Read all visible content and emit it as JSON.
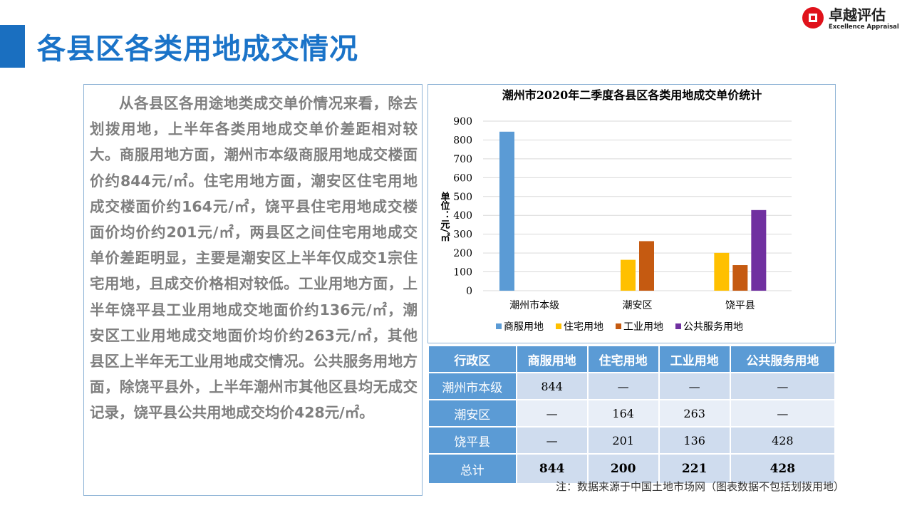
{
  "header": {
    "title": "各县区各类用地成交情况"
  },
  "logo": {
    "cn": "卓越评估",
    "en": "Excellence Appraisal",
    "color": "#e0121b"
  },
  "body_text": "从各县区各用途地类成交单价情况来看，除去划拨用地，上半年各类用地成交单价差距相对较大。商服用地方面，潮州市本级商服用地成交楼面价约844元/㎡。住宅用地方面，潮安区住宅用地成交楼面价约164元/㎡，饶平县住宅用地成交楼面价均价约201元/㎡，两县区之间住宅用地成交单价差距明显，主要是潮安区上半年仅成交1宗住宅用地，且成交价格相对较低。工业用地方面，上半年饶平县工业用地成交地面价约136元/㎡，潮安区工业用地成交地面价均价约263元/㎡，其他县区上半年无工业用地成交情况。公共服务用地方面，除饶平县外，上半年潮州市其他区县均无成交记录，饶平县公共用地成交均价428元/㎡。",
  "chart_data": {
    "type": "bar",
    "title": "潮州市2020年二季度各县区各类用地成交单价统计",
    "ylabel": "单位：元/㎡",
    "ylim": [
      0,
      900
    ],
    "yticks": [
      0,
      100,
      200,
      300,
      400,
      500,
      600,
      700,
      800,
      900
    ],
    "grid": true,
    "legend": "bottom",
    "categories": [
      "潮州市本级",
      "潮安区",
      "饶平县"
    ],
    "series": [
      {
        "name": "商服用地",
        "color": "#5b9bd5",
        "values": [
          844,
          null,
          null
        ]
      },
      {
        "name": "住宅用地",
        "color": "#ffc000",
        "values": [
          null,
          164,
          201
        ]
      },
      {
        "name": "工业用地",
        "color": "#c55a11",
        "values": [
          null,
          263,
          136
        ]
      },
      {
        "name": "公共服务用地",
        "color": "#7030a0",
        "values": [
          null,
          null,
          428
        ]
      }
    ]
  },
  "table": {
    "headers": [
      "行政区",
      "商服用地",
      "住宅用地",
      "工业用地",
      "公共服务用地"
    ],
    "rows": [
      [
        "潮州市本级",
        "844",
        "—",
        "—",
        "—"
      ],
      [
        "潮安区",
        "—",
        "164",
        "263",
        "—"
      ],
      [
        "饶平县",
        "—",
        "201",
        "136",
        "428"
      ],
      [
        "总计",
        "844",
        "200",
        "221",
        "428"
      ]
    ]
  },
  "note": "注：数据来源于中国土地市场网（图表数据不包括划拨用地）"
}
